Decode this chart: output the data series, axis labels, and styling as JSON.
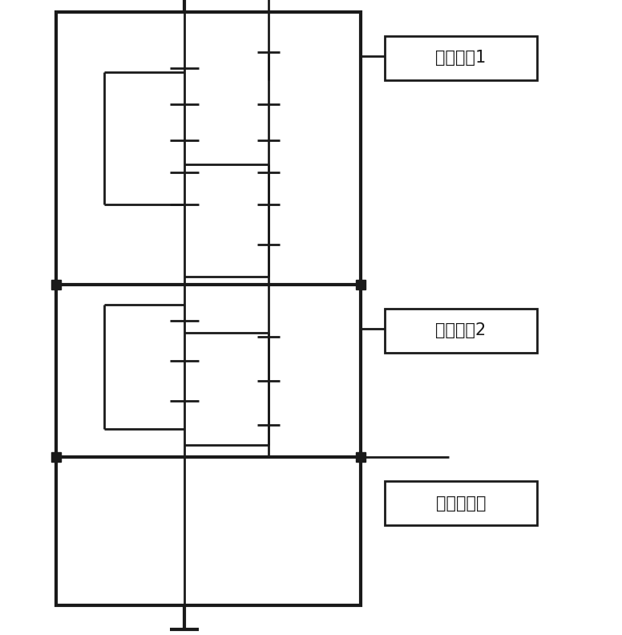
{
  "bg_color": "#ffffff",
  "line_color": "#1a1a1a",
  "lw": 2.0,
  "tlw": 3.0,
  "fig_width": 7.76,
  "fig_height": 7.92,
  "labels": [
    {
      "text": "电机输八1"
    },
    {
      "text": "电机输八2"
    },
    {
      "text": "输出接丝杆"
    }
  ]
}
